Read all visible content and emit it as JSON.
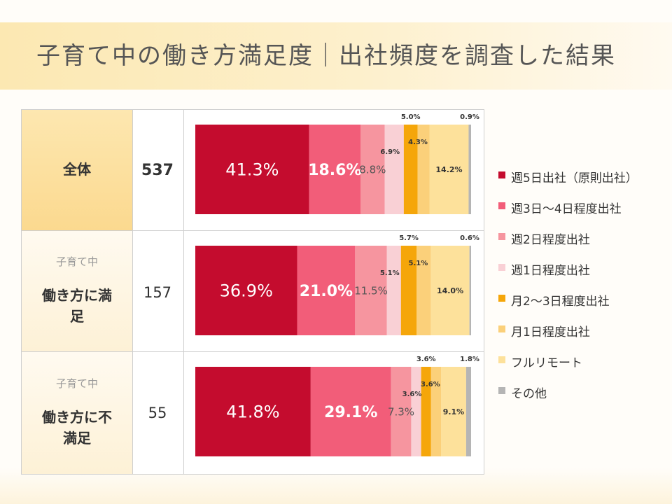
{
  "title": "子育て中の働き方満足度｜出社頻度を調査した結果",
  "rows": [
    {
      "label_main": "全体",
      "label_sub": "",
      "count": "537"
    },
    {
      "label_main": "働き方に満足",
      "label_sub": "子育て中",
      "count": "157"
    },
    {
      "label_main": "働き方に不満足",
      "label_sub": "子育て中",
      "count": "55"
    }
  ],
  "chart_data": {
    "type": "bar",
    "stacked": true,
    "orientation": "horizontal",
    "unit": "%",
    "categories": [
      "全体",
      "子育て中 働き方に満足",
      "子育て中 働き方に不満足"
    ],
    "series": [
      {
        "name": "週5日出社（原則出社）",
        "values": [
          41.3,
          36.9,
          41.8
        ],
        "color": "#c40c2e"
      },
      {
        "name": "週3日〜4日程度出社",
        "values": [
          18.6,
          21.0,
          29.1
        ],
        "color": "#f25d79"
      },
      {
        "name": "週2日程度出社",
        "values": [
          8.8,
          11.5,
          7.3
        ],
        "color": "#f6959f"
      },
      {
        "name": "週1日程度出社",
        "values": [
          6.9,
          5.1,
          3.6
        ],
        "color": "#f9d0d5"
      },
      {
        "name": "月2〜3日程度出社",
        "values": [
          5.0,
          5.7,
          3.6
        ],
        "color": "#f5a60a"
      },
      {
        "name": "月1日程度出社",
        "values": [
          4.3,
          5.1,
          3.6
        ],
        "color": "#fbd07a"
      },
      {
        "name": "フルリモート",
        "values": [
          14.2,
          14.0,
          9.1
        ],
        "color": "#fde19b"
      },
      {
        "name": "その他",
        "values": [
          0.9,
          0.6,
          1.8
        ],
        "color": "#b5b5b5"
      }
    ],
    "data_labels": [
      [
        "41.3%",
        "18.6%",
        "8.8%",
        "6.9%",
        "5.0%",
        "4.3%",
        "14.2%",
        "0.9%"
      ],
      [
        "36.9%",
        "21.0%",
        "11.5%",
        "5.1%",
        "5.7%",
        "5.1%",
        "14.0%",
        "0.6%"
      ],
      [
        "41.8%",
        "29.1%",
        "7.3%",
        "3.6%",
        "3.6%",
        "3.6%",
        "9.1%",
        "1.8%"
      ]
    ],
    "legend_position": "right"
  }
}
